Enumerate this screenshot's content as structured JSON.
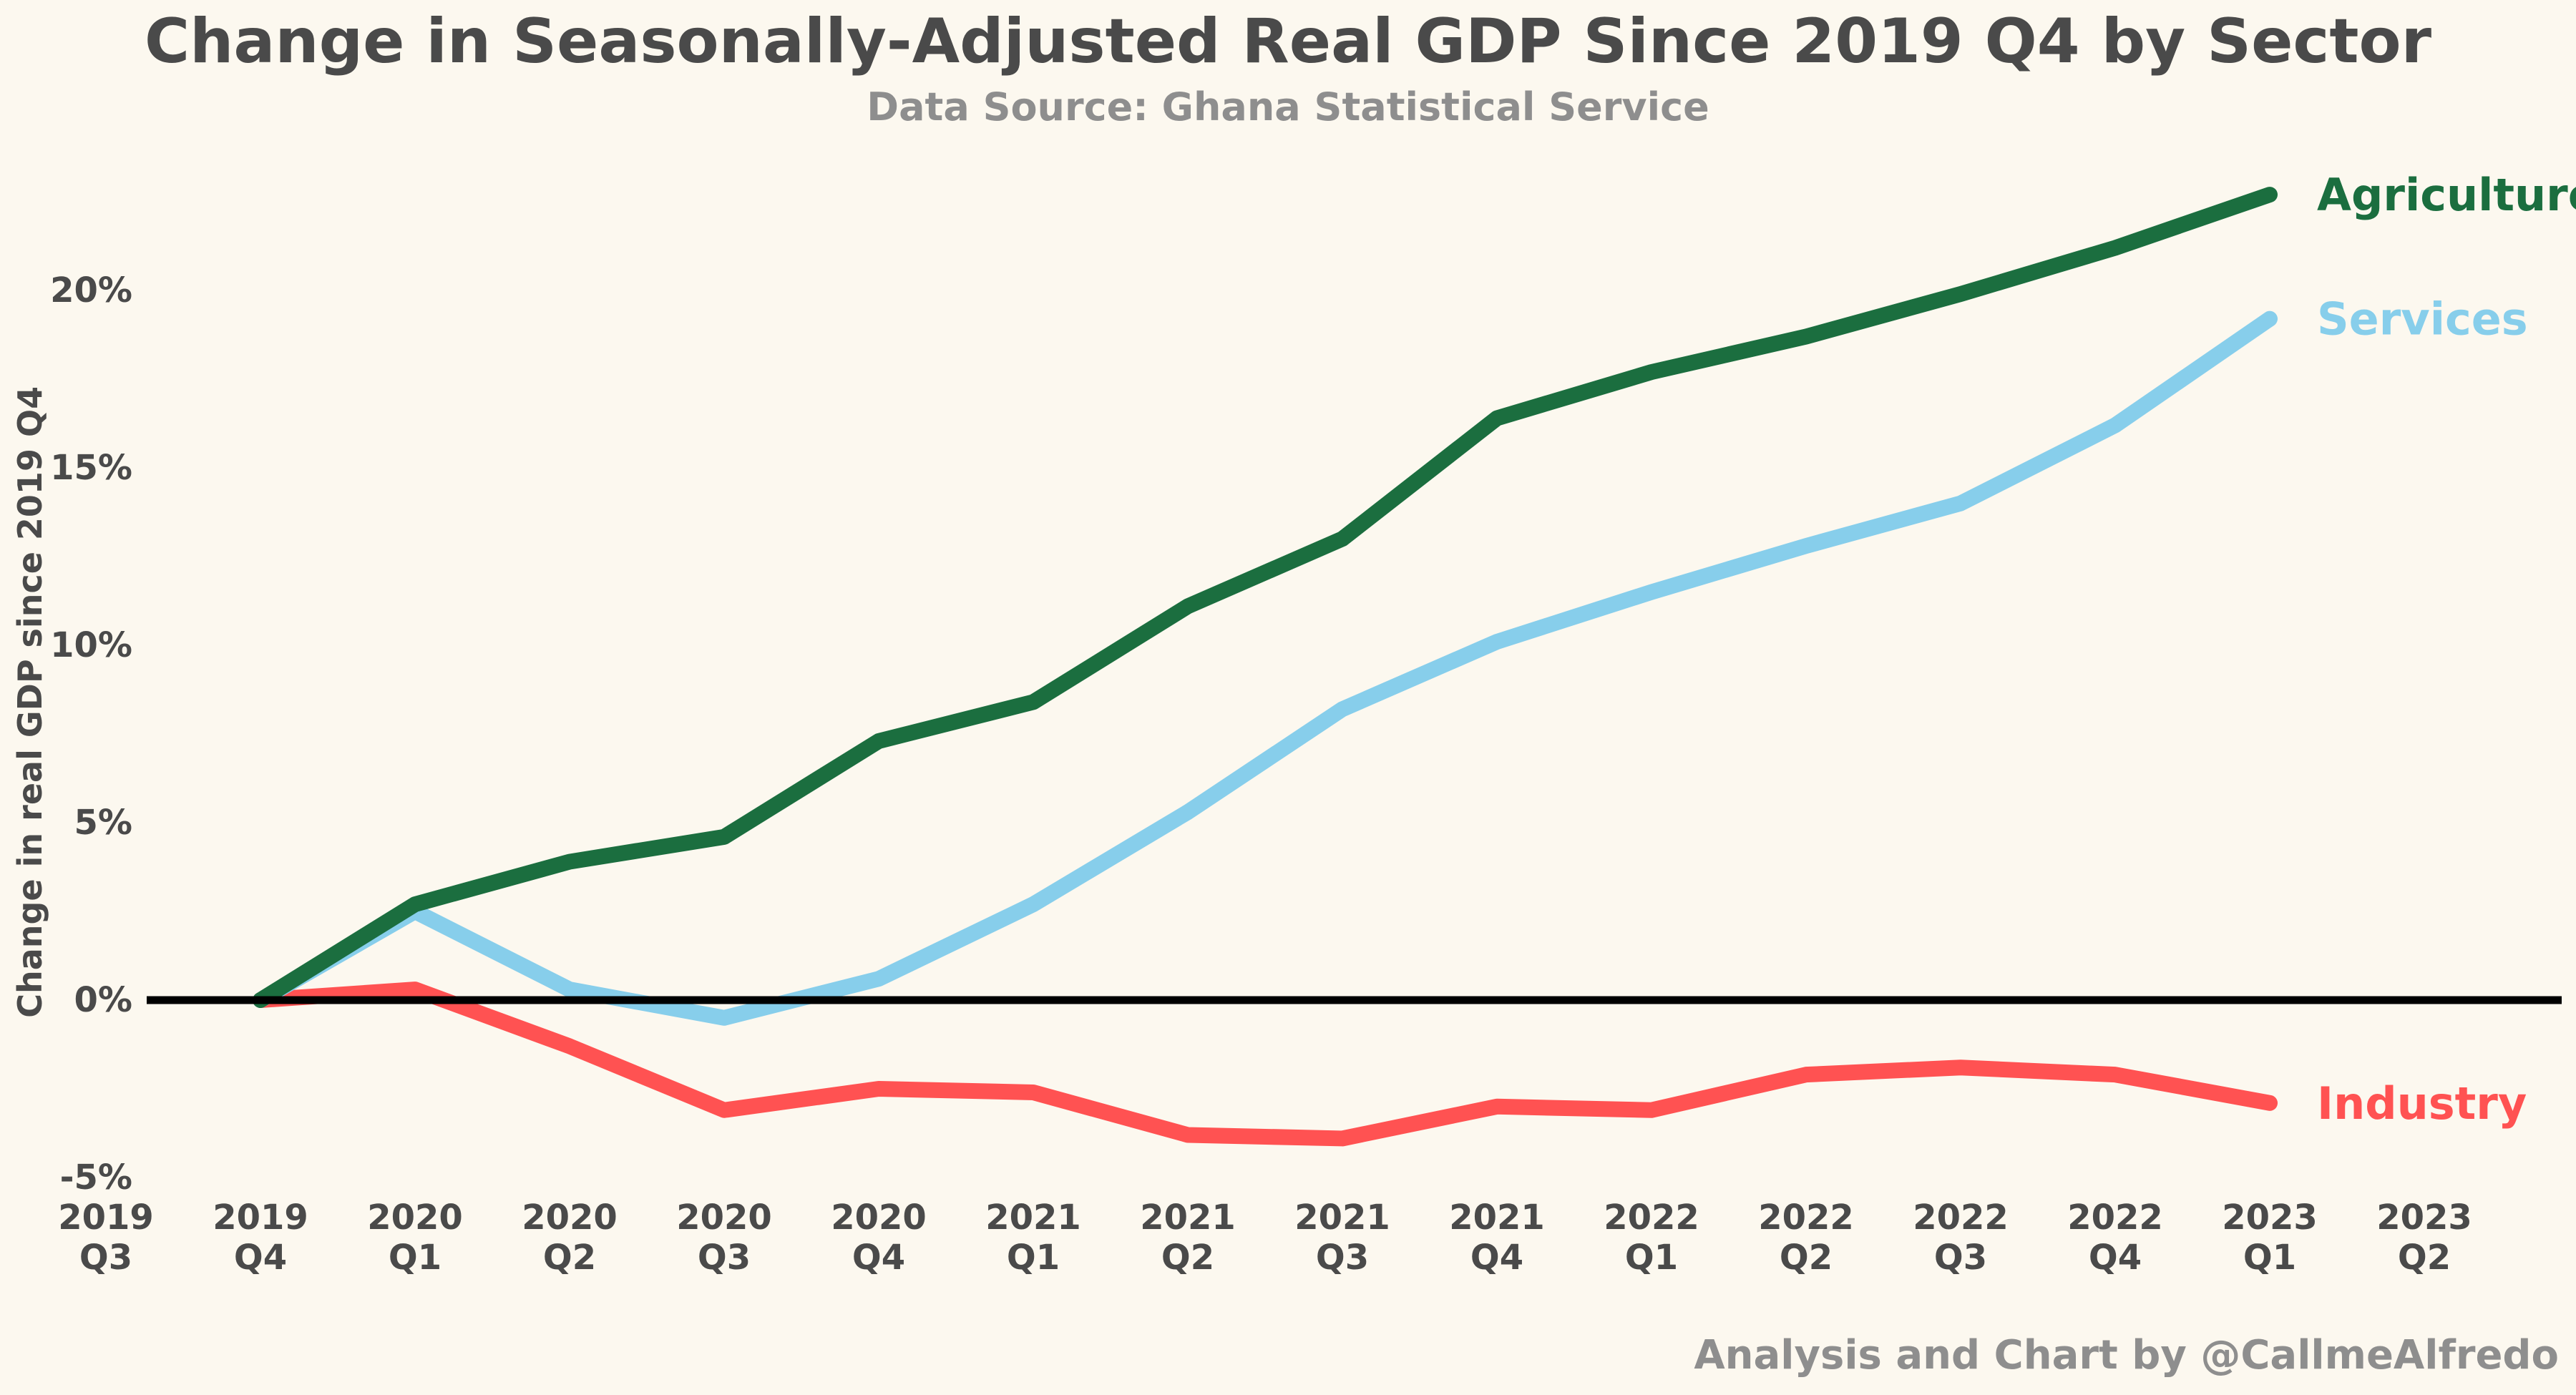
{
  "title": "Change in Seasonally-Adjusted Real GDP Since 2019 Q4 by Sector",
  "subtitle": "Data Source: Ghana Statistical Service",
  "credit": "Analysis and Chart by @CallmeAlfredo",
  "chart_data": {
    "type": "line",
    "title": "Change in Seasonally-Adjusted Real GDP Since 2019 Q4 by Sector",
    "subtitle": "Data Source: Ghana Statistical Service",
    "ylabel": "Change in real GDP since 2019 Q4",
    "xlabel": "",
    "categories": [
      [
        "2019",
        "Q3"
      ],
      [
        "2019",
        "Q4"
      ],
      [
        "2020",
        "Q1"
      ],
      [
        "2020",
        "Q2"
      ],
      [
        "2020",
        "Q3"
      ],
      [
        "2020",
        "Q4"
      ],
      [
        "2021",
        "Q1"
      ],
      [
        "2021",
        "Q2"
      ],
      [
        "2021",
        "Q3"
      ],
      [
        "2021",
        "Q4"
      ],
      [
        "2022",
        "Q1"
      ],
      [
        "2022",
        "Q2"
      ],
      [
        "2022",
        "Q3"
      ],
      [
        "2022",
        "Q4"
      ],
      [
        "2023",
        "Q1"
      ],
      [
        "2023",
        "Q2"
      ]
    ],
    "ylim": [
      -5,
      25
    ],
    "yticks": [
      -5,
      0,
      5,
      10,
      15,
      20
    ],
    "ytick_labels": [
      "-5%",
      "0%",
      "5%",
      "10%",
      "15%",
      "20%"
    ],
    "zero_line": true,
    "grid": false,
    "legend": "direct labels at line ends",
    "series": [
      {
        "name": "Agriculture",
        "color": "#1b6e3f",
        "values": [
          null,
          0,
          2.7,
          3.9,
          4.6,
          7.3,
          8.4,
          11.1,
          13.0,
          16.4,
          17.7,
          18.7,
          19.9,
          21.2,
          22.7,
          null
        ]
      },
      {
        "name": "Services",
        "color": "#87ceeb",
        "values": [
          null,
          0,
          2.5,
          0.3,
          -0.5,
          0.6,
          2.7,
          5.3,
          8.2,
          10.1,
          11.5,
          12.8,
          14.0,
          16.2,
          19.2,
          null
        ]
      },
      {
        "name": "Industry",
        "color": "#ff5252",
        "values": [
          null,
          0,
          0.3,
          -1.3,
          -3.1,
          -2.5,
          -2.6,
          -3.8,
          -3.9,
          -3.0,
          -3.1,
          -2.1,
          -1.9,
          -2.1,
          -2.9,
          null
        ]
      }
    ]
  }
}
